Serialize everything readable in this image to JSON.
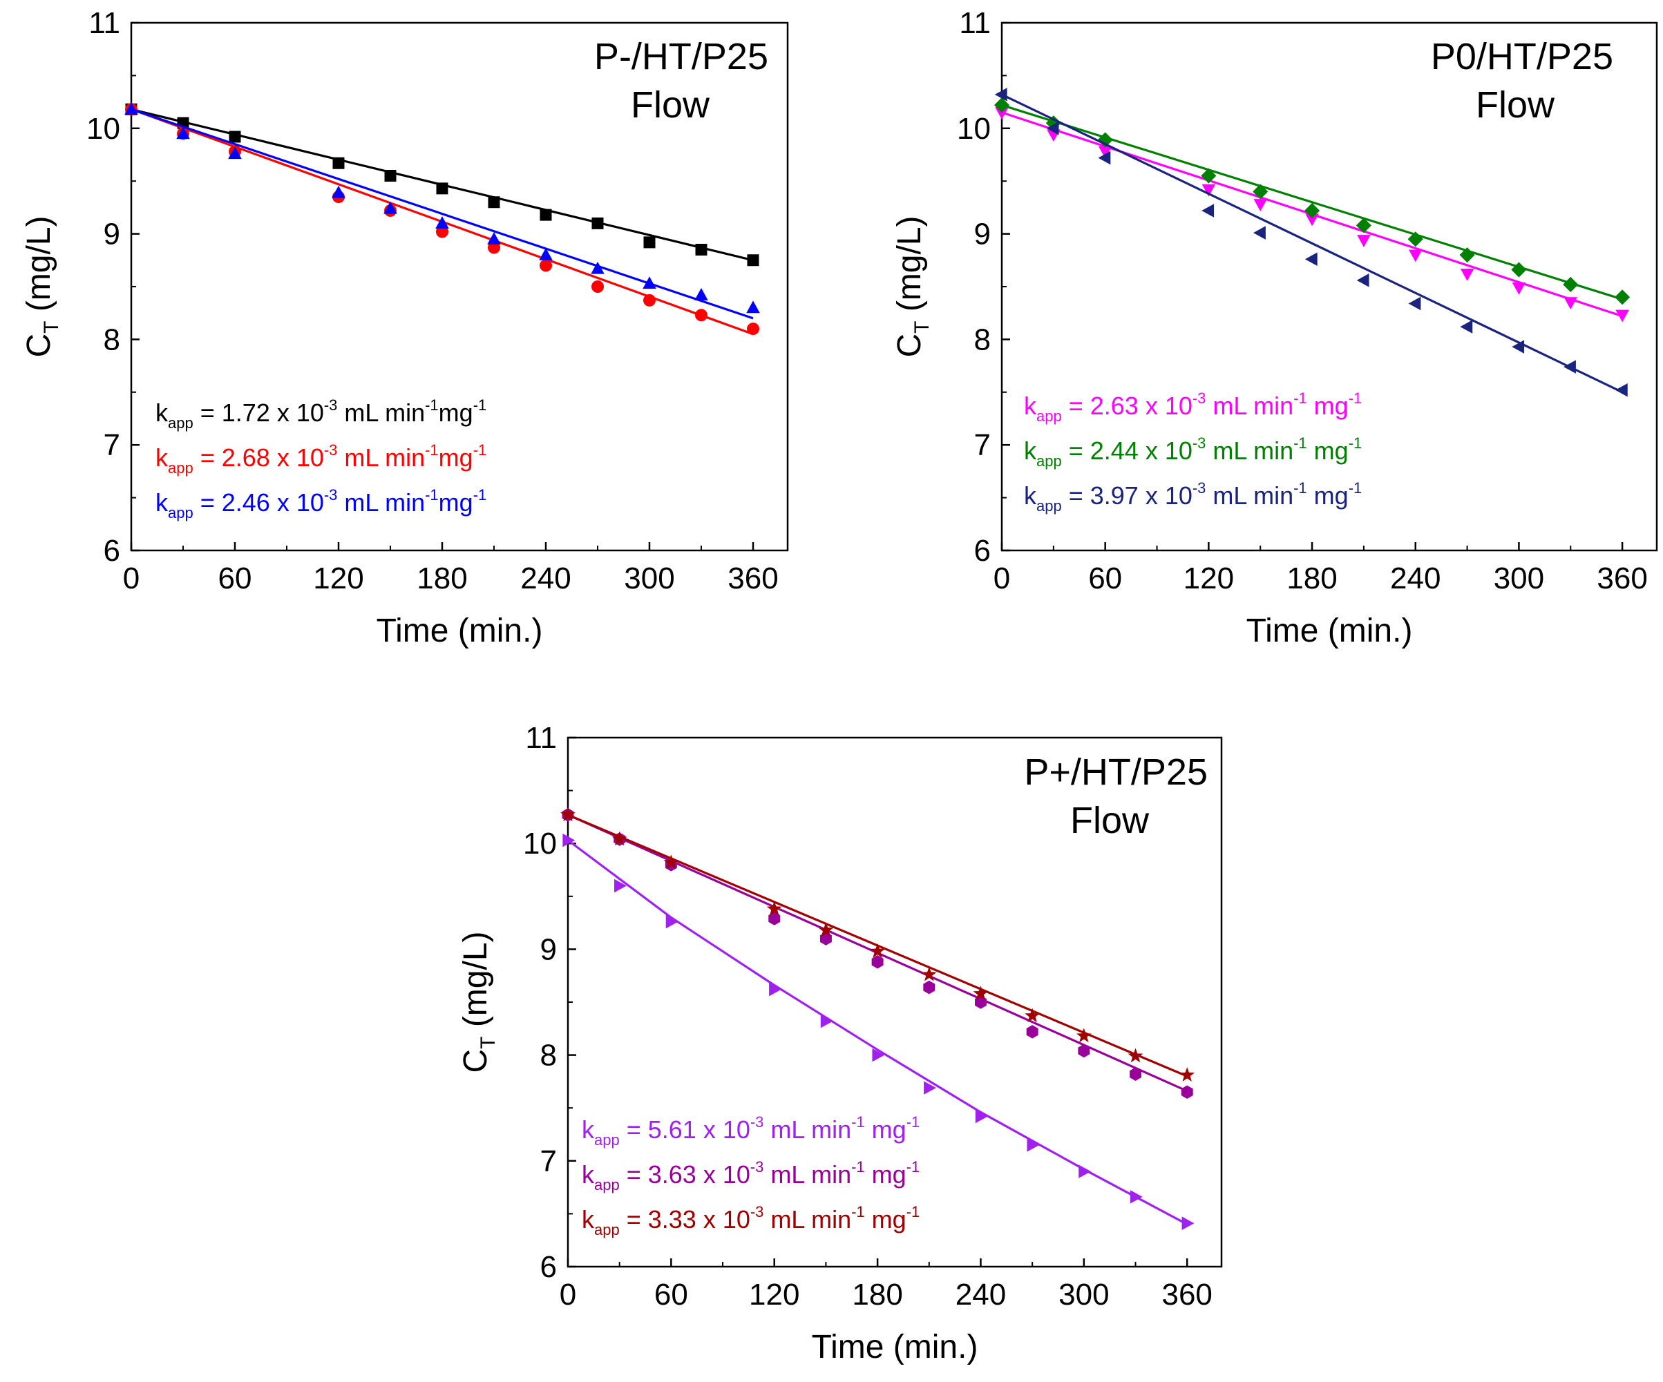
{
  "chart_data": [
    {
      "type": "scatter",
      "panel_title": "P-/HT/P25",
      "panel_subtitle": "Flow",
      "xlabel": "Time (min.)",
      "ylabel_main": "C",
      "ylabel_sub": "T",
      "ylabel_unit": " (mg/L)",
      "xlim": [
        0,
        380
      ],
      "ylim": [
        6,
        11
      ],
      "xticks": [
        0,
        60,
        120,
        180,
        240,
        300,
        360
      ],
      "yticks": [
        6,
        7,
        8,
        9,
        10,
        11
      ],
      "series": [
        {
          "name": "black",
          "color": "#000000",
          "marker": "square",
          "x": [
            0,
            30,
            60,
            120,
            150,
            180,
            210,
            240,
            270,
            300,
            330,
            360
          ],
          "y": [
            10.18,
            10.05,
            9.92,
            9.67,
            9.55,
            9.43,
            9.3,
            9.18,
            9.1,
            8.92,
            8.85,
            8.75
          ],
          "fit": [
            [
              0,
              10.18
            ],
            [
              360,
              8.75
            ]
          ],
          "annotation": {
            "k": "k",
            "sub": "app",
            "mid": " = 1.72 x 10",
            "exp": "-3",
            "rest": " mL min",
            "exp2": "-1",
            "rest2": "mg",
            "exp3": "-1"
          }
        },
        {
          "name": "red",
          "color": "#ff0000",
          "marker": "circle",
          "x": [
            0,
            30,
            60,
            120,
            150,
            180,
            210,
            240,
            270,
            300,
            330,
            360
          ],
          "y": [
            10.18,
            9.95,
            9.78,
            9.35,
            9.22,
            9.02,
            8.87,
            8.7,
            8.5,
            8.37,
            8.23,
            8.1
          ],
          "fit": [
            [
              0,
              10.18
            ],
            [
              360,
              8.05
            ]
          ],
          "annotation": {
            "k": "k",
            "sub": "app",
            "mid": " = 2.68 x 10",
            "exp": "-3",
            "rest": " mL min",
            "exp2": "-1",
            "rest2": "mg",
            "exp3": "-1"
          }
        },
        {
          "name": "blue",
          "color": "#0000ff",
          "marker": "triangle-up",
          "x": [
            0,
            30,
            60,
            120,
            150,
            180,
            210,
            240,
            270,
            300,
            330,
            360
          ],
          "y": [
            10.18,
            9.95,
            9.76,
            9.39,
            9.24,
            9.1,
            8.95,
            8.8,
            8.67,
            8.53,
            8.42,
            8.3
          ],
          "fit": [
            [
              0,
              10.18
            ],
            [
              360,
              8.2
            ]
          ],
          "annotation": {
            "k": "k",
            "sub": "app",
            "mid": " = 2.46 x 10",
            "exp": "-3",
            "rest": " mL min",
            "exp2": "-1",
            "rest2": "mg",
            "exp3": "-1"
          }
        }
      ]
    },
    {
      "type": "scatter",
      "panel_title": "P0/HT/P25",
      "panel_subtitle": "Flow",
      "xlabel": "Time (min.)",
      "ylabel_main": "C",
      "ylabel_sub": "T",
      "ylabel_unit": " (mg/L)",
      "xlim": [
        0,
        380
      ],
      "ylim": [
        6,
        11
      ],
      "xticks": [
        0,
        60,
        120,
        180,
        240,
        300,
        360
      ],
      "yticks": [
        6,
        7,
        8,
        9,
        10,
        11
      ],
      "series": [
        {
          "name": "magenta",
          "color": "#ff00ff",
          "marker": "triangle-down",
          "x": [
            0,
            30,
            60,
            120,
            150,
            180,
            210,
            240,
            270,
            300,
            330,
            360
          ],
          "y": [
            10.15,
            9.94,
            9.78,
            9.42,
            9.28,
            9.14,
            8.94,
            8.8,
            8.62,
            8.49,
            8.35,
            8.23
          ],
          "fit": [
            [
              0,
              10.15
            ],
            [
              360,
              8.22
            ]
          ],
          "annotation": {
            "k": "k",
            "sub": "app",
            "mid": " = 2.63 x 10",
            "exp": "-3",
            "rest": " mL min",
            "exp2": "-1",
            "rest2": " mg",
            "exp3": "-1"
          }
        },
        {
          "name": "green",
          "color": "#008000",
          "marker": "diamond",
          "x": [
            0,
            30,
            60,
            120,
            150,
            180,
            210,
            240,
            270,
            300,
            330,
            360
          ],
          "y": [
            10.22,
            10.05,
            9.89,
            9.55,
            9.4,
            9.22,
            9.08,
            8.95,
            8.8,
            8.66,
            8.52,
            8.4
          ],
          "fit": [
            [
              0,
              10.22
            ],
            [
              360,
              8.38
            ]
          ],
          "annotation": {
            "k": "k",
            "sub": "app",
            "mid": " = 2.44 x 10",
            "exp": "-3",
            "rest": " mL min",
            "exp2": "-1",
            "rest2": " mg",
            "exp3": "-1"
          }
        },
        {
          "name": "navy",
          "color": "#1a237e",
          "marker": "triangle-left",
          "x": [
            0,
            30,
            60,
            120,
            150,
            180,
            210,
            240,
            270,
            300,
            330,
            360
          ],
          "y": [
            10.32,
            10.0,
            9.72,
            9.22,
            9.01,
            8.76,
            8.56,
            8.34,
            8.12,
            7.93,
            7.74,
            7.52
          ],
          "fit": [
            [
              0,
              10.32
            ],
            [
              360,
              7.5
            ]
          ],
          "annotation": {
            "k": "k",
            "sub": "app",
            "mid": " = 3.97 x 10",
            "exp": "-3",
            "rest": " mL min",
            "exp2": "-1",
            "rest2": " mg",
            "exp3": "-1"
          }
        }
      ]
    },
    {
      "type": "scatter",
      "panel_title": "P+/HT/P25",
      "panel_subtitle": "Flow",
      "xlabel": "Time (min.)",
      "ylabel_main": "C",
      "ylabel_sub": "T",
      "ylabel_unit": " (mg/L)",
      "xlim": [
        0,
        380
      ],
      "ylim": [
        6,
        11
      ],
      "xticks": [
        0,
        60,
        120,
        180,
        240,
        300,
        360
      ],
      "yticks": [
        6,
        7,
        8,
        9,
        10,
        11
      ],
      "series": [
        {
          "name": "violet",
          "color": "#a020f0",
          "marker": "triangle-right",
          "x": [
            0,
            30,
            60,
            120,
            150,
            180,
            210,
            240,
            270,
            300,
            330,
            360
          ],
          "y": [
            10.03,
            9.6,
            9.26,
            8.62,
            8.32,
            8.0,
            7.69,
            7.42,
            7.15,
            6.9,
            6.66,
            6.41
          ],
          "fit": [
            [
              0,
              10.03
            ],
            [
              60,
              9.3
            ],
            [
              120,
              8.66
            ],
            [
              180,
              8.05
            ],
            [
              240,
              7.46
            ],
            [
              300,
              6.92
            ],
            [
              360,
              6.4
            ]
          ],
          "annotation": {
            "k": "k",
            "sub": "app",
            "mid": " = 5.61 x 10",
            "exp": "-3",
            "rest": " mL min",
            "exp2": "-1",
            "rest2": " mg",
            "exp3": "-1"
          }
        },
        {
          "name": "purple",
          "color": "#990099",
          "marker": "hexagon",
          "x": [
            0,
            30,
            60,
            120,
            150,
            180,
            210,
            240,
            270,
            300,
            330,
            360
          ],
          "y": [
            10.27,
            10.04,
            9.8,
            9.29,
            9.1,
            8.88,
            8.64,
            8.5,
            8.22,
            8.04,
            7.82,
            7.65
          ],
          "fit": [
            [
              0,
              10.27
            ],
            [
              360,
              7.66
            ]
          ],
          "annotation": {
            "k": "k",
            "sub": "app",
            "mid": " = 3.63 x 10",
            "exp": "-3",
            "rest": " mL min",
            "exp2": "-1",
            "rest2": " mg",
            "exp3": "-1"
          }
        },
        {
          "name": "darkred",
          "color": "#a00000",
          "marker": "star",
          "x": [
            0,
            30,
            60,
            120,
            150,
            180,
            210,
            240,
            270,
            300,
            330,
            360
          ],
          "y": [
            10.27,
            10.04,
            9.82,
            9.38,
            9.18,
            8.98,
            8.76,
            8.58,
            8.37,
            8.18,
            7.99,
            7.81
          ],
          "fit": [
            [
              0,
              10.27
            ],
            [
              360,
              7.8
            ]
          ],
          "annotation": {
            "k": "k",
            "sub": "app",
            "mid": " = 3.33 x 10",
            "exp": "-3",
            "rest": " mL min",
            "exp2": "-1",
            "rest2": " mg",
            "exp3": "-1"
          }
        }
      ]
    }
  ]
}
